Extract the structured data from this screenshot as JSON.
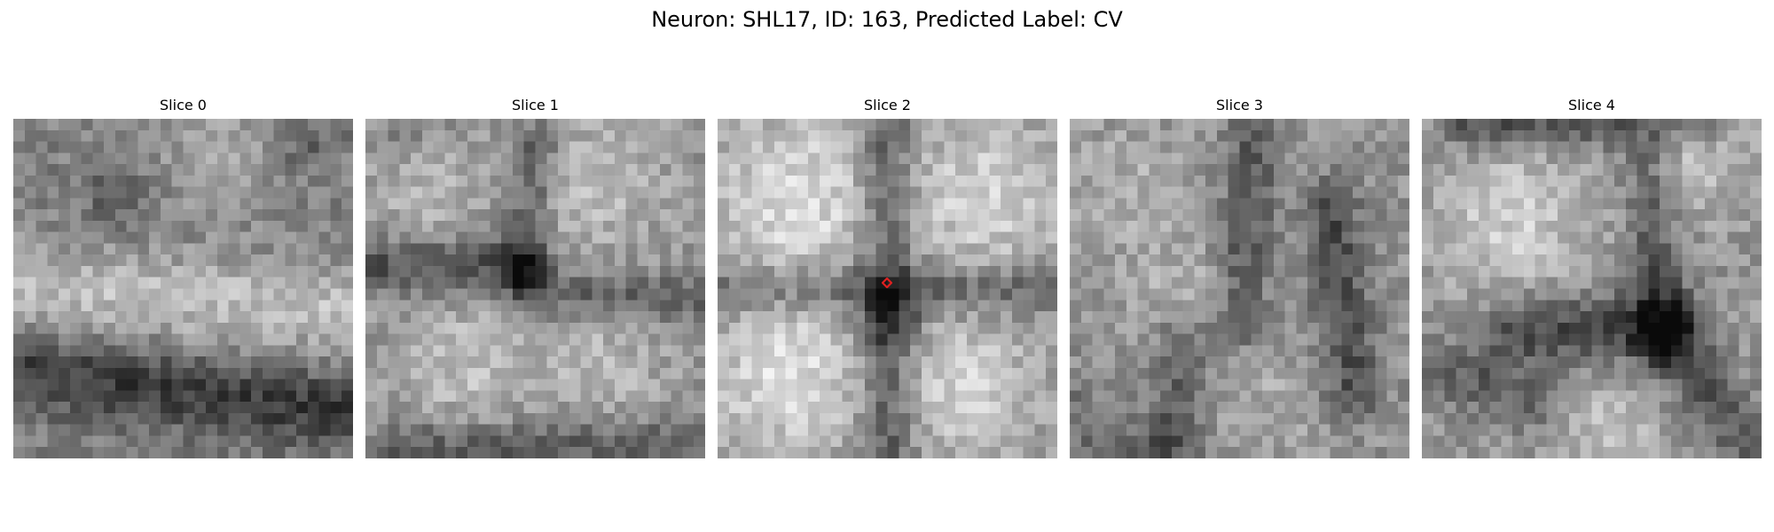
{
  "figure": {
    "title": "Neuron: SHL17, ID: 163, Predicted Label: CV"
  },
  "panels": [
    {
      "title": "Slice 0"
    },
    {
      "title": "Slice 1"
    },
    {
      "title": "Slice 2"
    },
    {
      "title": "Slice 3"
    },
    {
      "title": "Slice 4"
    }
  ],
  "marker": {
    "panel": 2,
    "shape": "diamond",
    "color": "#e02020"
  },
  "colors": {
    "colormap": "grayscale"
  }
}
